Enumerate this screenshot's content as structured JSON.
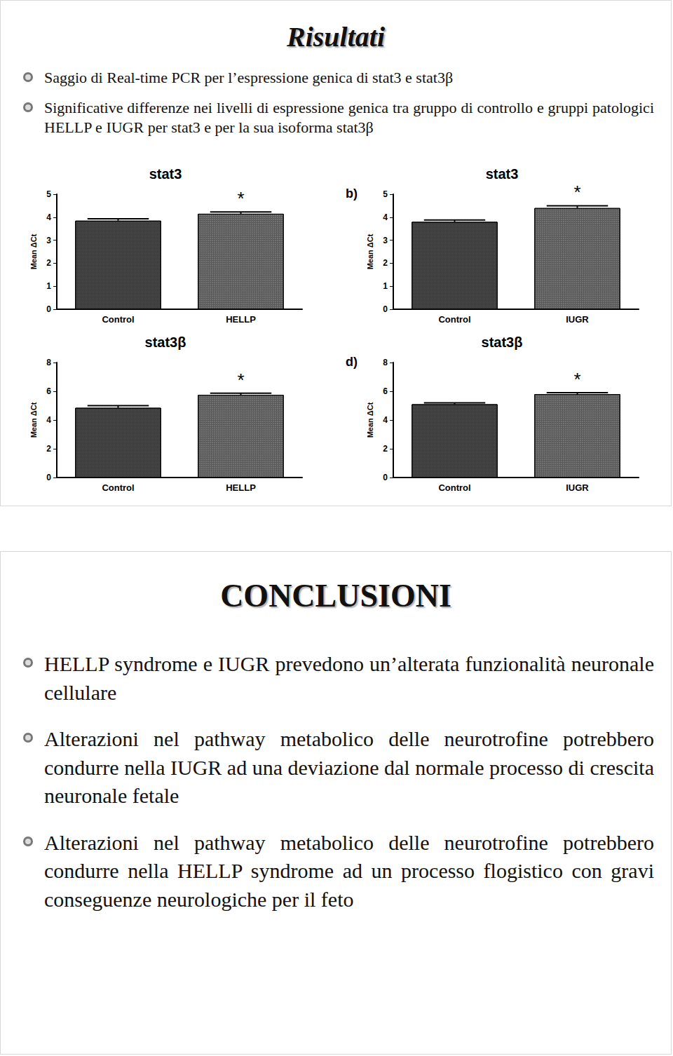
{
  "chart_data": [
    {
      "type": "bar",
      "panel_label": null,
      "title": "stat3",
      "y_label": "Mean ΔCt",
      "categories": [
        "Control",
        "HELLP"
      ],
      "values": [
        3.85,
        4.15
      ],
      "errors": [
        0.08,
        0.08
      ],
      "colors": [
        "#3a3a3a",
        "#5a5a5a"
      ],
      "annotations": [
        {
          "category": "HELLP",
          "text": "*"
        }
      ],
      "ylim": [
        0,
        5
      ],
      "yticks": [
        0,
        1,
        2,
        3,
        4,
        5
      ],
      "grid": false
    },
    {
      "type": "bar",
      "panel_label": "b)",
      "title": "stat3",
      "y_label": "Mean ΔCt",
      "categories": [
        "Control",
        "IUGR"
      ],
      "values": [
        3.8,
        4.4
      ],
      "errors": [
        0.08,
        0.1
      ],
      "colors": [
        "#3a3a3a",
        "#5a5a5a"
      ],
      "annotations": [
        {
          "category": "IUGR",
          "text": "*"
        }
      ],
      "ylim": [
        0,
        5
      ],
      "yticks": [
        0,
        1,
        2,
        3,
        4,
        5
      ],
      "grid": false
    },
    {
      "type": "bar",
      "panel_label": null,
      "title": "stat3β",
      "y_label": "Mean ΔCt",
      "categories": [
        "Control",
        "HELLP"
      ],
      "values": [
        4.85,
        5.75
      ],
      "errors": [
        0.15,
        0.12
      ],
      "colors": [
        "#3a3a3a",
        "#5a5a5a"
      ],
      "annotations": [
        {
          "category": "HELLP",
          "text": "*"
        }
      ],
      "ylim": [
        0,
        8
      ],
      "yticks": [
        0,
        2,
        4,
        6,
        8
      ],
      "grid": false
    },
    {
      "type": "bar",
      "panel_label": "d)",
      "title": "stat3β",
      "y_label": "Mean ΔCt",
      "categories": [
        "Control",
        "IUGR"
      ],
      "values": [
        5.1,
        5.8
      ],
      "errors": [
        0.1,
        0.1
      ],
      "colors": [
        "#3a3a3a",
        "#5a5a5a"
      ],
      "annotations": [
        {
          "category": "IUGR",
          "text": "*"
        }
      ],
      "ylim": [
        0,
        8
      ],
      "yticks": [
        0,
        2,
        4,
        6,
        8
      ],
      "grid": false
    }
  ],
  "document": {
    "slides": [
      {
        "title": "Risultati",
        "bullets": [
          "Saggio di Real-time PCR per l’espressione genica di stat3 e stat3β",
          "Significative differenze nei livelli di espressione genica tra gruppo di controllo e gruppi patologici HELLP e IUGR per stat3 e per la sua isoforma stat3β"
        ]
      },
      {
        "title": "CONCLUSIONI",
        "bullets": [
          "HELLP syndrome e IUGR prevedono un’alterata funzionalità neuronale cellulare",
          "Alterazioni nel pathway metabolico delle neurotrofine potrebbero condurre nella IUGR ad una deviazione dal normale processo di crescita neuronale fetale",
          "Alterazioni nel pathway metabolico delle neurotrofine potrebbero condurre nella HELLP syndrome ad un processo flogistico con gravi conseguenze neurologiche per il feto"
        ]
      }
    ]
  }
}
